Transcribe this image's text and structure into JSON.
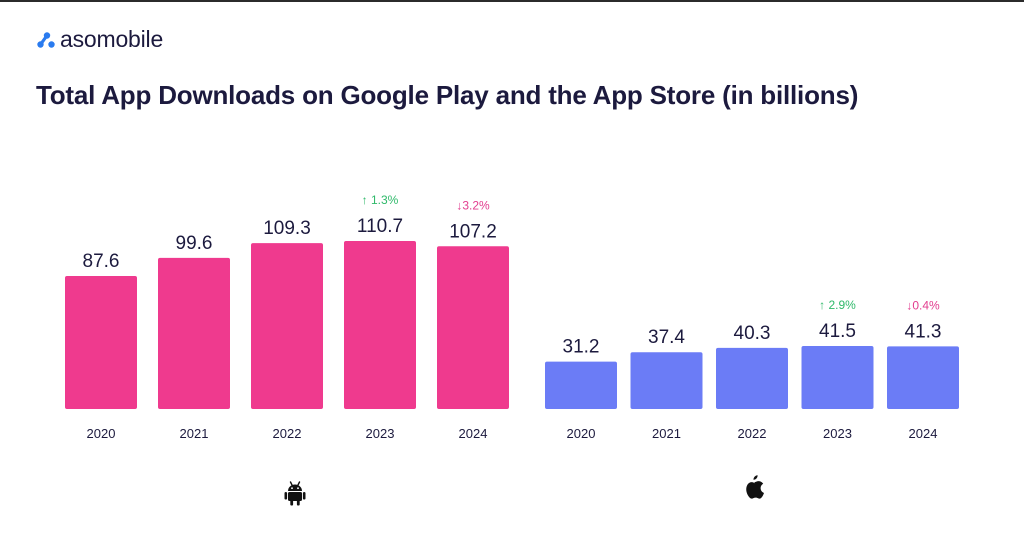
{
  "brand": {
    "name": "asomobile",
    "accent": "#2a7bef"
  },
  "title": "Total App Downloads on Google Play and the App Store (in billions)",
  "chart_data": [
    {
      "type": "bar",
      "icon": "android-icon",
      "color": "#ef3a8e",
      "categories": [
        "2020",
        "2021",
        "2022",
        "2023",
        "2024"
      ],
      "values": [
        87.6,
        99.6,
        109.3,
        110.7,
        107.2
      ],
      "value_labels": [
        "87.6",
        "99.6",
        "109.3",
        "110.7",
        "107.2"
      ],
      "annotations": [
        {
          "category": "2023",
          "text": "↑ 1.3%",
          "direction": "up",
          "color": "#2fb96a"
        },
        {
          "category": "2024",
          "text": "↓3.2%",
          "direction": "down",
          "color": "#e23e8f"
        }
      ],
      "title": "",
      "xlabel": "",
      "ylabel": "",
      "ylim": [
        0,
        110.7
      ],
      "grid": false,
      "legend": "none"
    },
    {
      "type": "bar",
      "icon": "apple-icon",
      "color": "#6b7cf6",
      "categories": [
        "2020",
        "2021",
        "2022",
        "2023",
        "2024"
      ],
      "values": [
        31.2,
        37.4,
        40.3,
        41.5,
        41.3
      ],
      "value_labels": [
        "31.2",
        "37.4",
        "40.3",
        "41.5",
        "41.3"
      ],
      "annotations": [
        {
          "category": "2023",
          "text": "↑ 2.9%",
          "direction": "up",
          "color": "#2fb96a"
        },
        {
          "category": "2024",
          "text": "↓0.4%",
          "direction": "down",
          "color": "#e23e8f"
        }
      ],
      "title": "",
      "xlabel": "",
      "ylabel": "",
      "ylim": [
        0,
        110.7
      ],
      "grid": false,
      "legend": "none"
    }
  ]
}
